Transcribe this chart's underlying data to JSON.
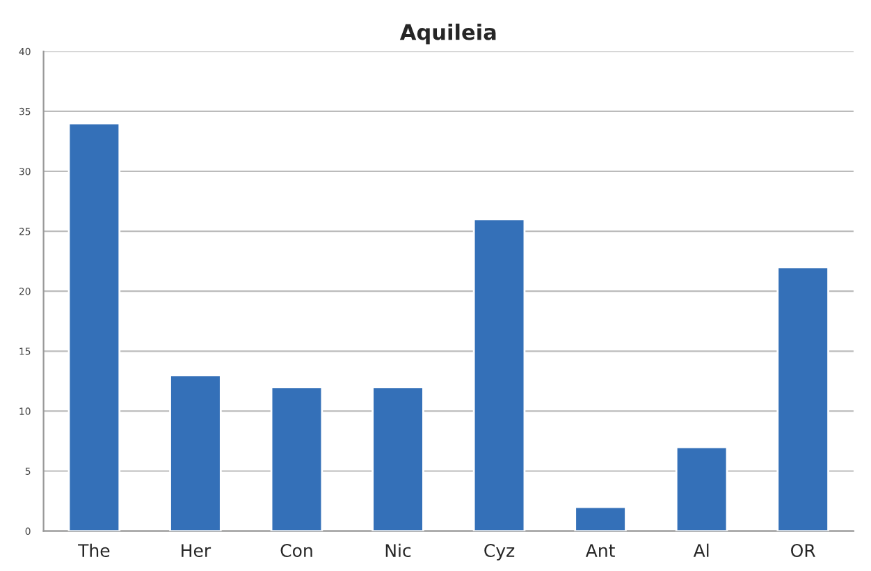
{
  "chart_data": {
    "type": "bar",
    "title": "Aquileia",
    "categories": [
      "The",
      "Her",
      "Con",
      "Nic",
      "Cyz",
      "Ant",
      "Al",
      "OR"
    ],
    "values": [
      34,
      13,
      12,
      12,
      26,
      2,
      7,
      22
    ],
    "color": "#3470b8",
    "ylim": [
      0,
      40
    ],
    "yticks": [
      0,
      5,
      10,
      15,
      20,
      25,
      30,
      35,
      40
    ],
    "grid": "y"
  }
}
